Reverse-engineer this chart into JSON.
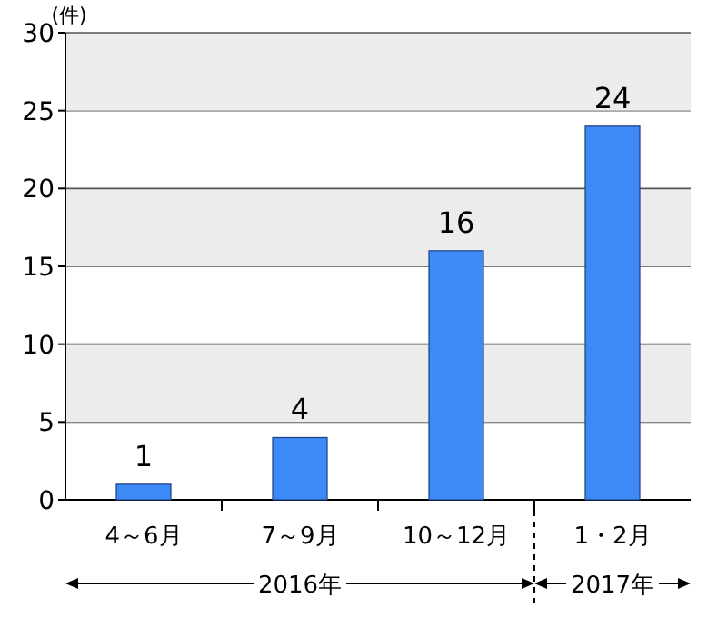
{
  "chart_data": {
    "type": "bar",
    "ylabel": "(件)",
    "categories": [
      "4～6月",
      "7～9月",
      "10～12月",
      "1・2月"
    ],
    "values": [
      1,
      4,
      16,
      24
    ],
    "color": "#3d8af7",
    "ylim": [
      0,
      30
    ],
    "yticks": [
      0,
      5,
      10,
      15,
      20,
      25,
      30
    ],
    "grid": "y",
    "data_labels": true,
    "annotations": [
      "2016年",
      "2017年"
    ]
  }
}
